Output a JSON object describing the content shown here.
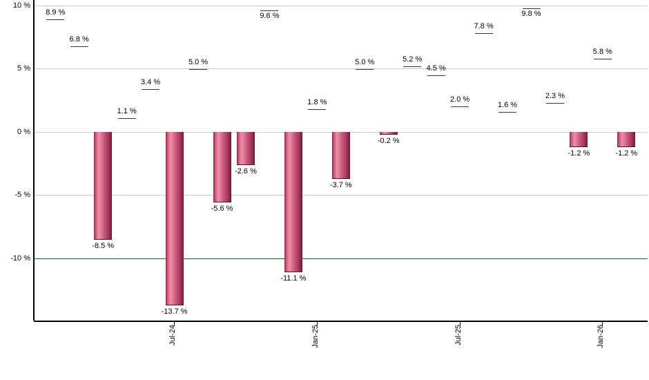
{
  "chart_data": {
    "type": "bar",
    "title": "",
    "description": "Monthly total return bar chart, percent per month",
    "values": [
      8.9,
      6.8,
      -8.5,
      1.1,
      3.4,
      -13.7,
      5.0,
      -5.6,
      -2.6,
      9.6,
      -11.1,
      1.8,
      -3.7,
      5.0,
      -0.2,
      5.2,
      4.5,
      2.0,
      7.8,
      1.6,
      9.8,
      2.3,
      -1.2,
      5.8,
      -1.2
    ],
    "value_labels": [
      "8.9 %",
      "6.8 %",
      "-8.5 %",
      "1.1 %",
      "3.4 %",
      "-13.7 %",
      "5.0 %",
      "-5.6 %",
      "-2.6 %",
      "9.6 %",
      "-11.1 %",
      "1.8 %",
      "-3.7 %",
      "5.0 %",
      "-0.2 %",
      "5.2 %",
      "4.5 %",
      "2.0 %",
      "7.8 %",
      "1.6 %",
      "9.8 %",
      "2.3 %",
      "-1.2 %",
      "5.8 %",
      "-1.2 %"
    ],
    "labels_inside_bar_indices": [
      9,
      20
    ],
    "x_ticks": [
      {
        "label": "Jul-24",
        "bar_index": 5
      },
      {
        "label": "Jan-25",
        "bar_index": 11
      },
      {
        "label": "Jul-25",
        "bar_index": 17
      },
      {
        "label": "Jan-26",
        "bar_index": 23
      }
    ],
    "y_ticks": [
      {
        "label": "10 %",
        "value": 10
      },
      {
        "label": "5 %",
        "value": 5
      },
      {
        "label": "0 %",
        "value": 0
      },
      {
        "label": "-5 %",
        "value": -5
      },
      {
        "label": "-10 %",
        "value": -10
      }
    ],
    "ylim": [
      -14.9,
      10.45
    ],
    "grid": true,
    "legend": null,
    "threshold_line": {
      "value": -10,
      "color": "#008000"
    },
    "colors": {
      "positive_bar": "#8fabd7",
      "negative_bar": "#c95b7e",
      "grid_line": "#c9c9c9",
      "axis_line": "#000000",
      "label_text": "#000000"
    }
  }
}
